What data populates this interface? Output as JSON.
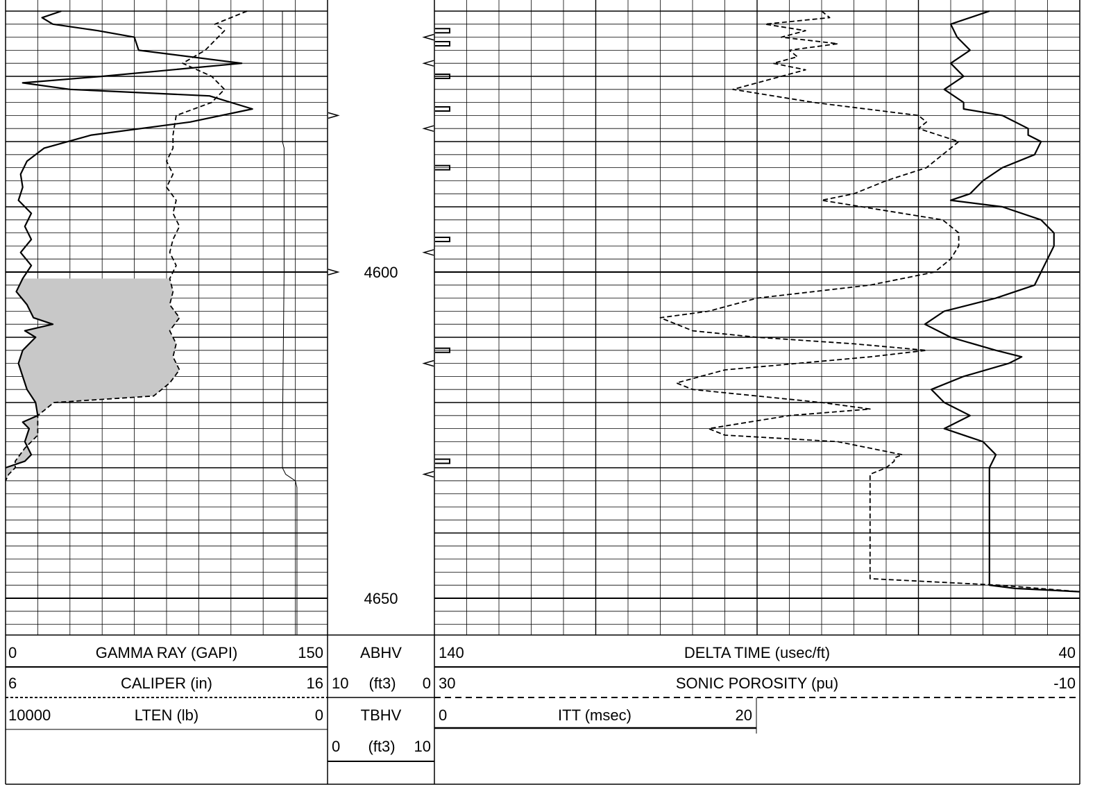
{
  "chart_data": {
    "type": "line",
    "depth_unit": "ft",
    "depth_range": [
      4560,
      4660
    ],
    "depth_ticks": [
      4600,
      4650
    ],
    "tracks": [
      {
        "id": "track1",
        "curves": [
          {
            "name": "GAMMA RAY (GAPI)",
            "scale": [
              0,
              150
            ],
            "style": "solid",
            "points": [
              [
                4560,
                26
              ],
              [
                4561,
                17
              ],
              [
                4562,
                22
              ],
              [
                4563,
                43
              ],
              [
                4564,
                60
              ],
              [
                4566,
                62
              ],
              [
                4568,
                110
              ],
              [
                4570,
                45
              ],
              [
                4571,
                8
              ],
              [
                4572,
                30
              ],
              [
                4573,
                95
              ],
              [
                4575,
                115
              ],
              [
                4577,
                86
              ],
              [
                4579,
                40
              ],
              [
                4581,
                18
              ],
              [
                4583,
                10
              ],
              [
                4585,
                7
              ],
              [
                4587,
                8
              ],
              [
                4589,
                6
              ],
              [
                4591,
                12
              ],
              [
                4593,
                9
              ],
              [
                4595,
                12
              ],
              [
                4597,
                7
              ],
              [
                4599,
                12
              ],
              [
                4601,
                8
              ],
              [
                4603,
                5
              ],
              [
                4605,
                10
              ],
              [
                4607,
                13
              ],
              [
                4608,
                22
              ],
              [
                4609,
                9
              ],
              [
                4610,
                14
              ],
              [
                4612,
                8
              ],
              [
                4614,
                6
              ],
              [
                4616,
                8
              ],
              [
                4618,
                10
              ],
              [
                4620,
                14
              ],
              [
                4622,
                15
              ],
              [
                4623,
                8
              ],
              [
                4624,
                11
              ],
              [
                4626,
                9
              ],
              [
                4628,
                12
              ],
              [
                4629,
                9
              ],
              [
                4630,
                0
              ]
            ]
          },
          {
            "name": "CALIPER (in)",
            "scale": [
              6,
              16
            ],
            "style": "dashed",
            "points": [
              [
                4560,
                13.5
              ],
              [
                4562,
                12.5
              ],
              [
                4563,
                12.8
              ],
              [
                4566,
                12.2
              ],
              [
                4568,
                11.5
              ],
              [
                4570,
                12.4
              ],
              [
                4572,
                12.8
              ],
              [
                4574,
                12.4
              ],
              [
                4576,
                11.3
              ],
              [
                4579,
                11.2
              ],
              [
                4581,
                11.2
              ],
              [
                4583,
                11.0
              ],
              [
                4585,
                11.2
              ],
              [
                4587,
                11.0
              ],
              [
                4589,
                11.3
              ],
              [
                4591,
                11.2
              ],
              [
                4593,
                11.4
              ],
              [
                4595,
                11.2
              ],
              [
                4597,
                11.1
              ],
              [
                4599,
                11.3
              ],
              [
                4601,
                11.1
              ],
              [
                4603,
                11.2
              ],
              [
                4605,
                11.1
              ],
              [
                4607,
                11.4
              ],
              [
                4609,
                11.1
              ],
              [
                4611,
                11.3
              ],
              [
                4613,
                11.2
              ],
              [
                4615,
                11.4
              ],
              [
                4617,
                11.1
              ],
              [
                4619,
                10.6
              ],
              [
                4620,
                7.5
              ],
              [
                4622,
                7.0
              ],
              [
                4625,
                7.0
              ],
              [
                4627,
                6.6
              ],
              [
                4629,
                6.3
              ],
              [
                4630,
                6.3
              ],
              [
                4631,
                6.1
              ],
              [
                4632,
                6.0
              ]
            ]
          },
          {
            "name": "LTEN (lb)",
            "scale": [
              10000,
              0
            ],
            "style": "thin",
            "points": [
              [
                4560,
                1400
              ],
              [
                4580,
                1400
              ],
              [
                4581,
                1350
              ],
              [
                4600,
                1350
              ],
              [
                4625,
                1400
              ],
              [
                4630,
                1400
              ],
              [
                4631,
                1300
              ],
              [
                4632,
                1000
              ],
              [
                4633,
                950
              ],
              [
                4660,
                950
              ]
            ]
          }
        ],
        "shading": "between GAMMA RAY and CALIPER, 4601-4632 ft"
      },
      {
        "id": "depth_track",
        "curves": [
          {
            "name": "ABHV",
            "scale": [
              10,
              0
            ],
            "unit": "(ft3)",
            "style": "tick",
            "points": [
              [
                4576,
                10
              ],
              [
                4600,
                10
              ]
            ]
          },
          {
            "name": "TBHV",
            "scale": [
              0,
              10
            ],
            "unit": "(ft3)",
            "style": "tick",
            "points": [
              [
                4564,
                0
              ],
              [
                4568,
                10
              ],
              [
                4578,
                10
              ],
              [
                4597,
                10
              ],
              [
                4614,
                10
              ],
              [
                4631,
                10
              ]
            ]
          }
        ]
      },
      {
        "id": "track2",
        "curves": [
          {
            "name": "DELTA TIME (usec/ft)",
            "scale": [
              140,
              40
            ],
            "style": "solid",
            "points": [
              [
                4560,
                54
              ],
              [
                4561,
                57
              ],
              [
                4562,
                60
              ],
              [
                4564,
                59
              ],
              [
                4566,
                57
              ],
              [
                4568,
                60
              ],
              [
                4570,
                58
              ],
              [
                4572,
                61
              ],
              [
                4574,
                58
              ],
              [
                4575,
                58
              ],
              [
                4576,
                52
              ],
              [
                4578,
                48
              ],
              [
                4579,
                48
              ],
              [
                4580,
                46
              ],
              [
                4582,
                47
              ],
              [
                4584,
                52
              ],
              [
                4586,
                55
              ],
              [
                4588,
                57
              ],
              [
                4589,
                60
              ],
              [
                4590,
                52
              ],
              [
                4592,
                46
              ],
              [
                4594,
                44
              ],
              [
                4596,
                44
              ],
              [
                4598,
                45
              ],
              [
                4600,
                46
              ],
              [
                4602,
                47
              ],
              [
                4604,
                53
              ],
              [
                4606,
                61
              ],
              [
                4608,
                64
              ],
              [
                4610,
                60
              ],
              [
                4612,
                53
              ],
              [
                4613,
                49
              ],
              [
                4614,
                51
              ],
              [
                4616,
                58
              ],
              [
                4618,
                63
              ],
              [
                4620,
                61
              ],
              [
                4622,
                57
              ],
              [
                4624,
                61
              ],
              [
                4626,
                55
              ],
              [
                4627,
                54
              ],
              [
                4628,
                53
              ],
              [
                4630,
                54
              ],
              [
                4632,
                54
              ],
              [
                4640,
                54
              ],
              [
                4648,
                54
              ],
              [
                4648.5,
                50
              ],
              [
                4649,
                40
              ]
            ]
          },
          {
            "name": "SONIC POROSITY (pu)",
            "scale": [
              30,
              -10
            ],
            "style": "dashed",
            "points": [
              [
                4560,
                6
              ],
              [
                4561,
                5.5
              ],
              [
                4562,
                9.5
              ],
              [
                4563,
                7
              ],
              [
                4564,
                8.5
              ],
              [
                4565,
                5
              ],
              [
                4566,
                8
              ],
              [
                4567,
                7.5
              ],
              [
                4568,
                9
              ],
              [
                4569,
                7
              ],
              [
                4570,
                8.5
              ],
              [
                4572,
                11.5
              ],
              [
                4574,
                6.5
              ],
              [
                4576,
                0
              ],
              [
                4577,
                -0.5
              ],
              [
                4578,
                0
              ],
              [
                4580,
                -2.5
              ],
              [
                4581,
                -2
              ],
              [
                4582,
                -1.5
              ],
              [
                4584,
                -0.5
              ],
              [
                4586,
                2
              ],
              [
                4588,
                4
              ],
              [
                4589,
                6
              ],
              [
                4590,
                3.5
              ],
              [
                4592,
                -1.5
              ],
              [
                4594,
                -2.5
              ],
              [
                4596,
                -2.5
              ],
              [
                4598,
                -2
              ],
              [
                4600,
                -1
              ],
              [
                4602,
                3
              ],
              [
                4604,
                10
              ],
              [
                4606,
                13
              ],
              [
                4607,
                16
              ],
              [
                4609,
                14
              ],
              [
                4610,
                10
              ],
              [
                4611,
                4
              ],
              [
                4612,
                -0.5
              ],
              [
                4613,
                3
              ],
              [
                4615,
                12
              ],
              [
                4617,
                15
              ],
              [
                4618,
                14
              ],
              [
                4619,
                10
              ],
              [
                4620,
                6
              ],
              [
                4621,
                3
              ],
              [
                4622,
                8
              ],
              [
                4624,
                13
              ],
              [
                4625,
                12
              ],
              [
                4626,
                5
              ],
              [
                4628,
                1
              ],
              [
                4628.5,
                1.5
              ],
              [
                4629,
                1.5
              ],
              [
                4630,
                2
              ],
              [
                4631,
                3
              ],
              [
                4632,
                3
              ],
              [
                4640,
                3
              ],
              [
                4647,
                3
              ],
              [
                4648,
                -5
              ],
              [
                4649,
                -10
              ]
            ]
          }
        ]
      },
      {
        "id": "track2_itt",
        "curves": [
          {
            "name": "ITT (msec)",
            "scale": [
              0,
              20
            ],
            "style": "tick",
            "points": [
              [
                4563,
                0
              ],
              [
                4565,
                0
              ],
              [
                4570,
                0
              ],
              [
                4575,
                0
              ],
              [
                4584,
                0
              ],
              [
                4595,
                0
              ],
              [
                4612,
                0
              ],
              [
                4629,
                0
              ]
            ]
          }
        ]
      }
    ]
  },
  "header": {
    "gr": {
      "min": "0",
      "label": "GAMMA RAY (GAPI)",
      "max": "150"
    },
    "cal": {
      "min": "6",
      "label": "CALIPER (in)",
      "max": "16"
    },
    "lten": {
      "min": "10000",
      "label": "LTEN (lb)",
      "max": "0"
    },
    "abhv": {
      "label": "ABHV",
      "left": "10",
      "unit": "(ft3)",
      "right": "0"
    },
    "tbhv": {
      "label": "TBHV",
      "left": "0",
      "unit": "(ft3)",
      "right": "10"
    },
    "dt": {
      "min": "140",
      "label": "DELTA TIME (usec/ft)",
      "max": "40"
    },
    "sphi": {
      "min": "30",
      "label": "SONIC POROSITY (pu)",
      "max": "-10"
    },
    "itt": {
      "min": "0",
      "label": "ITT (msec)",
      "max": "20"
    }
  },
  "depth_labels": {
    "d4600": "4600",
    "d4650": "4650"
  }
}
